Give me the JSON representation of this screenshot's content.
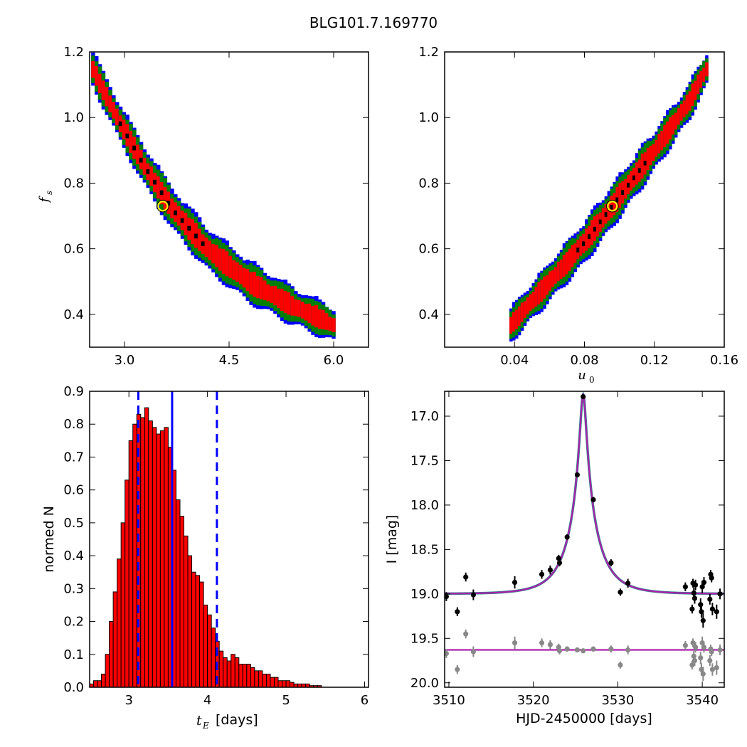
{
  "suptitle": "BLG101.7.169770",
  "colors": {
    "level1": "#0000ff",
    "level2": "#008000",
    "level3": "#ff0000",
    "level4": "#000000",
    "best_fit_marker": "#ffff00",
    "hist_bar": "#ff0000",
    "hist_lines": "#0000ff",
    "model_curve": "#aa22aa",
    "data_points": "#000000",
    "residuals": "#888888"
  },
  "chart_data": [
    {
      "id": "fs_vs_tE",
      "type": "heatmap",
      "title": "",
      "xlabel": "",
      "ylabel": "f_s",
      "xlim": [
        2.5,
        6.5
      ],
      "ylim": [
        0.3,
        1.2
      ],
      "xticks": [
        "3.0",
        "4.5",
        "6.0"
      ],
      "xtick_values": [
        3.0,
        4.5,
        6.0
      ],
      "yticks": [
        "0.4",
        "0.6",
        "0.8",
        "1.0",
        "1.2"
      ],
      "ytick_values": [
        0.4,
        0.6,
        0.8,
        1.0,
        1.2
      ],
      "ridge": {
        "x": [
          2.55,
          2.9,
          3.3,
          3.7,
          4.2,
          4.8,
          5.4,
          6.0
        ],
        "y": [
          1.15,
          1.0,
          0.85,
          0.72,
          0.6,
          0.5,
          0.43,
          0.37
        ]
      },
      "confidence_regions": [
        "blue",
        "green",
        "red",
        "black"
      ],
      "best_fit": {
        "x": 3.55,
        "y": 0.73
      }
    },
    {
      "id": "fs_vs_u0",
      "type": "heatmap",
      "title": "",
      "xlabel": "u_0",
      "ylabel": "",
      "xlim": [
        0.0,
        0.16
      ],
      "ylim": [
        0.3,
        1.2
      ],
      "xticks": [
        "0.04",
        "0.08",
        "0.12",
        "0.16"
      ],
      "xtick_values": [
        0.04,
        0.08,
        0.12,
        0.16
      ],
      "yticks": [
        "0.4",
        "0.6",
        "0.8",
        "1.0",
        "1.2"
      ],
      "ytick_values": [
        0.4,
        0.6,
        0.8,
        1.0,
        1.2
      ],
      "ridge": {
        "x": [
          0.038,
          0.06,
          0.08,
          0.1,
          0.12,
          0.14,
          0.15
        ],
        "y": [
          0.37,
          0.5,
          0.62,
          0.76,
          0.9,
          1.05,
          1.15
        ]
      },
      "confidence_regions": [
        "blue",
        "green",
        "red",
        "black"
      ],
      "best_fit": {
        "x": 0.096,
        "y": 0.73
      }
    },
    {
      "id": "tE_histogram",
      "type": "bar",
      "title": "",
      "xlabel": "t_E [days]",
      "xlabel_symbol": "t",
      "xlabel_sub": "E",
      "xlabel_unit": "[days]",
      "ylabel": "normed N",
      "xlim": [
        2.5,
        6.05
      ],
      "ylim": [
        0.0,
        0.9
      ],
      "xticks": [
        "3",
        "4",
        "5",
        "6"
      ],
      "xtick_values": [
        3,
        4,
        5,
        6
      ],
      "yticks": [
        "0.0",
        "0.1",
        "0.2",
        "0.3",
        "0.4",
        "0.5",
        "0.6",
        "0.7",
        "0.8",
        "0.9"
      ],
      "ytick_values": [
        0.0,
        0.1,
        0.2,
        0.3,
        0.4,
        0.5,
        0.6,
        0.7,
        0.8,
        0.9
      ],
      "bin_start": 2.5,
      "bin_width": 0.05,
      "values": [
        0.01,
        0.02,
        0.02,
        0.04,
        0.1,
        0.2,
        0.29,
        0.39,
        0.5,
        0.63,
        0.75,
        0.8,
        0.83,
        0.82,
        0.85,
        0.81,
        0.79,
        0.77,
        0.78,
        0.79,
        0.73,
        0.66,
        0.57,
        0.52,
        0.46,
        0.4,
        0.35,
        0.34,
        0.32,
        0.25,
        0.22,
        0.18,
        0.14,
        0.11,
        0.09,
        0.08,
        0.1,
        0.09,
        0.07,
        0.07,
        0.07,
        0.06,
        0.05,
        0.05,
        0.04,
        0.04,
        0.03,
        0.03,
        0.02,
        0.02,
        0.02,
        0.015,
        0.01,
        0.01,
        0.01,
        0.01,
        0.005,
        0.005,
        0.005,
        0.0
      ],
      "median": 3.55,
      "lower": 3.12,
      "upper": 4.12
    },
    {
      "id": "lightcurve",
      "type": "scatter",
      "title": "",
      "xlabel": "HJD-2450000 [days]",
      "ylabel": "I [mag]",
      "xlim": [
        3509.5,
        3542.6
      ],
      "ylim": [
        20.05,
        16.72
      ],
      "xticks": [
        "3510",
        "3520",
        "3530",
        "3540"
      ],
      "xtick_values": [
        3510,
        3520,
        3530,
        3540
      ],
      "yticks": [
        "17.0",
        "17.5",
        "18.0",
        "18.5",
        "19.0",
        "19.5",
        "20.0"
      ],
      "ytick_values": [
        17.0,
        17.5,
        18.0,
        18.5,
        19.0,
        19.5,
        20.0
      ],
      "model": {
        "t0": 3525.9,
        "tE": 3.55,
        "u0": 0.096,
        "baseline": 19.0,
        "fs": 0.73
      },
      "residual_baseline": 19.63,
      "data": [
        {
          "x": 3509.7,
          "y": 19.03,
          "e": 0.05
        },
        {
          "x": 3511.0,
          "y": 19.2,
          "e": 0.05
        },
        {
          "x": 3512.0,
          "y": 18.81,
          "e": 0.05
        },
        {
          "x": 3512.9,
          "y": 19.01,
          "e": 0.06
        },
        {
          "x": 3517.8,
          "y": 18.87,
          "e": 0.07
        },
        {
          "x": 3521.0,
          "y": 18.78,
          "e": 0.05
        },
        {
          "x": 3522.0,
          "y": 18.73,
          "e": 0.05
        },
        {
          "x": 3523.0,
          "y": 18.6,
          "e": 0.04
        },
        {
          "x": 3523.1,
          "y": 18.65,
          "e": 0.04
        },
        {
          "x": 3524.0,
          "y": 18.36,
          "e": 0.03
        },
        {
          "x": 3525.2,
          "y": 17.66,
          "e": 0.02
        },
        {
          "x": 3525.9,
          "y": 16.78,
          "e": 0.02
        },
        {
          "x": 3527.1,
          "y": 17.94,
          "e": 0.03
        },
        {
          "x": 3529.2,
          "y": 18.65,
          "e": 0.04
        },
        {
          "x": 3530.3,
          "y": 18.98,
          "e": 0.04
        },
        {
          "x": 3531.2,
          "y": 18.88,
          "e": 0.05
        },
        {
          "x": 3538.0,
          "y": 18.92,
          "e": 0.05
        },
        {
          "x": 3538.8,
          "y": 19.17,
          "e": 0.05
        },
        {
          "x": 3538.9,
          "y": 18.88,
          "e": 0.05
        },
        {
          "x": 3539.0,
          "y": 18.99,
          "e": 0.06
        },
        {
          "x": 3539.1,
          "y": 19.05,
          "e": 0.06
        },
        {
          "x": 3539.2,
          "y": 18.9,
          "e": 0.06
        },
        {
          "x": 3539.8,
          "y": 19.12,
          "e": 0.07
        },
        {
          "x": 3539.9,
          "y": 19.2,
          "e": 0.07
        },
        {
          "x": 3540.0,
          "y": 18.92,
          "e": 0.07
        },
        {
          "x": 3540.1,
          "y": 19.3,
          "e": 0.08
        },
        {
          "x": 3540.2,
          "y": 18.87,
          "e": 0.06
        },
        {
          "x": 3540.9,
          "y": 19.06,
          "e": 0.06
        },
        {
          "x": 3541.0,
          "y": 18.78,
          "e": 0.05
        },
        {
          "x": 3541.1,
          "y": 18.82,
          "e": 0.05
        },
        {
          "x": 3541.2,
          "y": 19.17,
          "e": 0.07
        },
        {
          "x": 3541.7,
          "y": 19.2,
          "e": 0.08
        },
        {
          "x": 3542.1,
          "y": 19.0,
          "e": 0.06
        }
      ],
      "residuals": [
        {
          "x": 3509.7,
          "y": 19.67,
          "e": 0.05
        },
        {
          "x": 3511.0,
          "y": 19.85,
          "e": 0.05
        },
        {
          "x": 3512.0,
          "y": 19.45,
          "e": 0.05
        },
        {
          "x": 3512.9,
          "y": 19.65,
          "e": 0.06
        },
        {
          "x": 3517.8,
          "y": 19.55,
          "e": 0.07
        },
        {
          "x": 3521.0,
          "y": 19.55,
          "e": 0.05
        },
        {
          "x": 3522.0,
          "y": 19.57,
          "e": 0.05
        },
        {
          "x": 3523.0,
          "y": 19.6,
          "e": 0.04
        },
        {
          "x": 3523.1,
          "y": 19.64,
          "e": 0.04
        },
        {
          "x": 3524.0,
          "y": 19.62,
          "e": 0.03
        },
        {
          "x": 3525.2,
          "y": 19.63,
          "e": 0.02
        },
        {
          "x": 3525.9,
          "y": 19.64,
          "e": 0.02
        },
        {
          "x": 3527.1,
          "y": 19.62,
          "e": 0.03
        },
        {
          "x": 3529.2,
          "y": 19.62,
          "e": 0.04
        },
        {
          "x": 3530.3,
          "y": 19.8,
          "e": 0.04
        },
        {
          "x": 3531.2,
          "y": 19.63,
          "e": 0.05
        },
        {
          "x": 3538.0,
          "y": 19.58,
          "e": 0.05
        },
        {
          "x": 3538.8,
          "y": 19.8,
          "e": 0.05
        },
        {
          "x": 3538.9,
          "y": 19.55,
          "e": 0.05
        },
        {
          "x": 3539.0,
          "y": 19.7,
          "e": 0.06
        },
        {
          "x": 3539.1,
          "y": 19.75,
          "e": 0.06
        },
        {
          "x": 3539.2,
          "y": 19.6,
          "e": 0.06
        },
        {
          "x": 3539.8,
          "y": 19.72,
          "e": 0.07
        },
        {
          "x": 3539.9,
          "y": 19.85,
          "e": 0.07
        },
        {
          "x": 3540.0,
          "y": 19.55,
          "e": 0.07
        },
        {
          "x": 3540.1,
          "y": 19.9,
          "e": 0.08
        },
        {
          "x": 3540.2,
          "y": 19.6,
          "e": 0.06
        },
        {
          "x": 3540.9,
          "y": 19.75,
          "e": 0.06
        },
        {
          "x": 3541.0,
          "y": 19.62,
          "e": 0.05
        },
        {
          "x": 3541.1,
          "y": 19.65,
          "e": 0.05
        },
        {
          "x": 3541.2,
          "y": 19.85,
          "e": 0.07
        },
        {
          "x": 3541.7,
          "y": 19.83,
          "e": 0.08
        },
        {
          "x": 3542.1,
          "y": 19.63,
          "e": 0.06
        }
      ]
    }
  ]
}
